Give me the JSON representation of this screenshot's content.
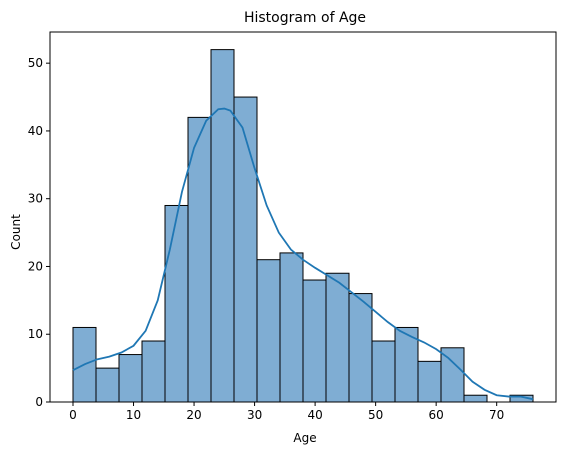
{
  "chart_data": {
    "type": "bar",
    "title": "Histogram of Age",
    "xlabel": "Age",
    "ylabel": "Count",
    "bin_edges": [
      0.0,
      3.8,
      7.6,
      11.4,
      15.2,
      19.0,
      22.8,
      26.6,
      30.4,
      34.2,
      38.0,
      41.8,
      45.6,
      49.4,
      53.2,
      57.0,
      60.8,
      64.6,
      68.4,
      72.2,
      76.0
    ],
    "counts": [
      11,
      5,
      7,
      9,
      29,
      42,
      52,
      45,
      21,
      22,
      18,
      19,
      16,
      9,
      11,
      6,
      8,
      1,
      0,
      1
    ],
    "kde": {
      "x": [
        0,
        2,
        4,
        6,
        8,
        10,
        12,
        14,
        16,
        18,
        20,
        22,
        24,
        25,
        26,
        28,
        30,
        32,
        34,
        36,
        38,
        40,
        42,
        44,
        46,
        48,
        50,
        52,
        54,
        56,
        58,
        60,
        62,
        64,
        66,
        68,
        70,
        72,
        74,
        76
      ],
      "y": [
        4.7,
        5.6,
        6.3,
        6.7,
        7.3,
        8.3,
        10.5,
        15.0,
        22.5,
        31.0,
        37.5,
        41.5,
        43.2,
        43.3,
        43.0,
        40.5,
        34.5,
        29.0,
        25.0,
        22.5,
        21.0,
        19.8,
        18.7,
        17.6,
        16.2,
        14.8,
        13.3,
        11.8,
        10.5,
        9.6,
        8.8,
        7.8,
        6.5,
        4.8,
        3.0,
        1.8,
        1.0,
        0.8,
        0.8,
        0.4
      ]
    },
    "xlim": [
      -3.8,
      79.8
    ],
    "ylim": [
      0,
      54.6
    ],
    "x_ticks": [
      0,
      10,
      20,
      30,
      40,
      50,
      60,
      70
    ],
    "y_ticks": [
      0,
      10,
      20,
      30,
      40,
      50
    ],
    "grid": false,
    "legend": "none",
    "colors": {
      "bar_fill": "#7fadd3",
      "bar_edge": "#000000",
      "kde_line": "#1f77b4",
      "axis": "#000000"
    }
  }
}
